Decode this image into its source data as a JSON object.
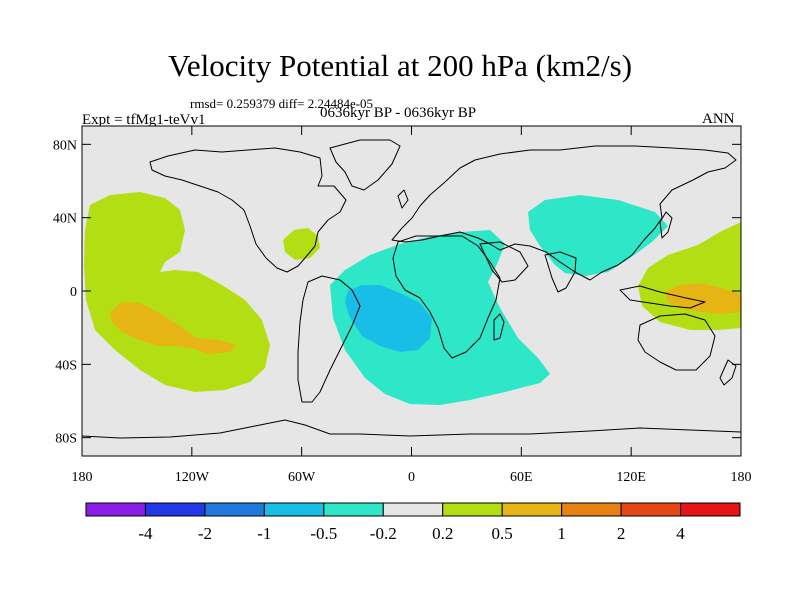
{
  "title": "Velocity Potential at 200 hPa (km2/s)",
  "stats": "rmsd= 0.259379 diff= 2.24484e-05",
  "left_label": "Expt = tfMg1-teVv1",
  "center_label": "0636kyr BP - 0636kyr BP",
  "right_label": "ANN",
  "y_ticks": [
    {
      "value": 80,
      "label": "80N"
    },
    {
      "value": 40,
      "label": "40N"
    },
    {
      "value": 0,
      "label": "0"
    },
    {
      "value": -40,
      "label": "40S"
    },
    {
      "value": -80,
      "label": "80S"
    }
  ],
  "x_ticks": [
    {
      "value": -180,
      "label": "180"
    },
    {
      "value": -120,
      "label": "120W"
    },
    {
      "value": -60,
      "label": "60W"
    },
    {
      "value": 0,
      "label": "0"
    },
    {
      "value": 60,
      "label": "60E"
    },
    {
      "value": 120,
      "label": "120E"
    },
    {
      "value": 180,
      "label": "180"
    }
  ],
  "colorbar": {
    "colors": [
      "#8a1ee6",
      "#2238e6",
      "#1f78dc",
      "#18bee6",
      "#2ee6c8",
      "#e6e6e6",
      "#b4de14",
      "#e6b414",
      "#e68214",
      "#e64614",
      "#e61414"
    ],
    "labels": [
      "-4",
      "-2",
      "-1",
      "-0.5",
      "-0.2",
      "0.2",
      "0.5",
      "1",
      "2",
      "4"
    ]
  },
  "map": {
    "background": "#e6e6e6",
    "lon_range": [
      -180,
      180
    ],
    "lat_range": [
      -90,
      90
    ]
  }
}
